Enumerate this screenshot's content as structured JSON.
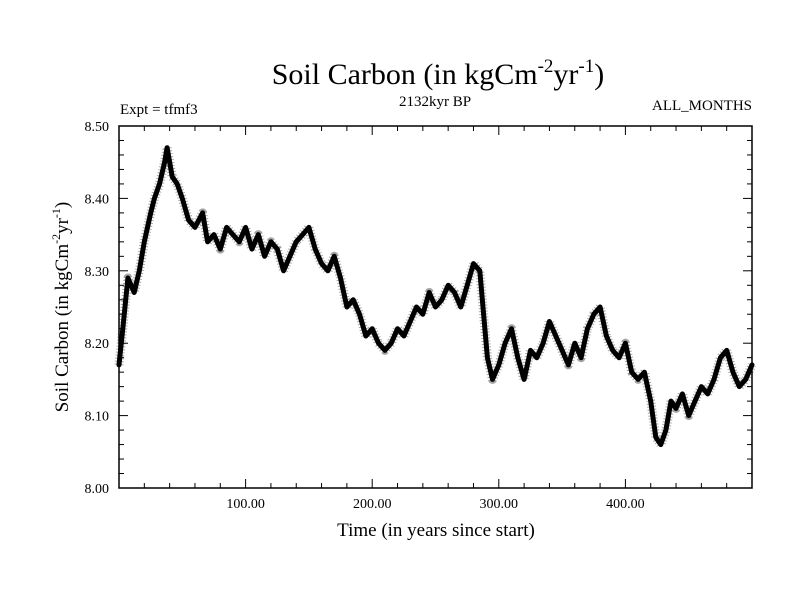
{
  "chart_data": {
    "type": "line",
    "title_main": "Soil Carbon (in kgCm",
    "title_sup1": "-2",
    "title_mid": "yr",
    "title_sup2": "-1",
    "title_end": ")",
    "subtitle_left": "Expt = tfmf3",
    "subtitle_center": "2132kyr BP",
    "subtitle_right": "ALL_MONTHS",
    "xlabel": "Time (in years since start)",
    "ylabel_main": "Soil Carbon (in kgCm",
    "ylabel_sup1": "-2",
    "ylabel_mid": "yr",
    "ylabel_sup2": "-1",
    "ylabel_end": ")",
    "xlim": [
      0,
      500
    ],
    "ylim": [
      8.0,
      8.5
    ],
    "x_ticks": [
      100,
      200,
      300,
      400
    ],
    "x_tick_labels": [
      "100.00",
      "200.00",
      "300.00",
      "400.00"
    ],
    "y_ticks": [
      8.0,
      8.1,
      8.2,
      8.3,
      8.4,
      8.5
    ],
    "y_tick_labels": [
      "8.00",
      "8.10",
      "8.20",
      "8.30",
      "8.40",
      "8.50"
    ],
    "series": [
      {
        "name": "Soil Carbon",
        "color": "#000000",
        "x": [
          0,
          3,
          7,
          12,
          16,
          20,
          25,
          28,
          32,
          36,
          38,
          42,
          46,
          50,
          55,
          60,
          66,
          70,
          75,
          80,
          85,
          90,
          95,
          100,
          105,
          110,
          115,
          120,
          125,
          130,
          135,
          140,
          145,
          150,
          155,
          160,
          165,
          170,
          175,
          180,
          185,
          190,
          195,
          200,
          205,
          210,
          215,
          220,
          225,
          230,
          235,
          240,
          245,
          250,
          255,
          260,
          265,
          270,
          275,
          280,
          285,
          288,
          291,
          295,
          300,
          305,
          310,
          315,
          320,
          325,
          330,
          335,
          340,
          345,
          350,
          355,
          360,
          365,
          370,
          375,
          380,
          385,
          390,
          395,
          400,
          405,
          410,
          415,
          420,
          424,
          428,
          432,
          436,
          440,
          445,
          450,
          455,
          460,
          465,
          470,
          475,
          480,
          485,
          490,
          495,
          500
        ],
        "values": [
          8.17,
          8.22,
          8.29,
          8.27,
          8.3,
          8.34,
          8.38,
          8.4,
          8.42,
          8.45,
          8.47,
          8.43,
          8.42,
          8.4,
          8.37,
          8.36,
          8.38,
          8.34,
          8.35,
          8.33,
          8.36,
          8.35,
          8.34,
          8.36,
          8.33,
          8.35,
          8.32,
          8.34,
          8.33,
          8.3,
          8.32,
          8.34,
          8.35,
          8.36,
          8.33,
          8.31,
          8.3,
          8.32,
          8.29,
          8.25,
          8.26,
          8.24,
          8.21,
          8.22,
          8.2,
          8.19,
          8.2,
          8.22,
          8.21,
          8.23,
          8.25,
          8.24,
          8.27,
          8.25,
          8.26,
          8.28,
          8.27,
          8.25,
          8.28,
          8.31,
          8.3,
          8.24,
          8.18,
          8.15,
          8.17,
          8.2,
          8.22,
          8.18,
          8.15,
          8.19,
          8.18,
          8.2,
          8.23,
          8.21,
          8.19,
          8.17,
          8.2,
          8.18,
          8.22,
          8.24,
          8.25,
          8.21,
          8.19,
          8.18,
          8.2,
          8.16,
          8.15,
          8.16,
          8.12,
          8.07,
          8.06,
          8.08,
          8.12,
          8.11,
          8.13,
          8.1,
          8.12,
          8.14,
          8.13,
          8.15,
          8.18,
          8.19,
          8.16,
          8.14,
          8.15,
          8.17
        ]
      }
    ],
    "grid": false
  }
}
